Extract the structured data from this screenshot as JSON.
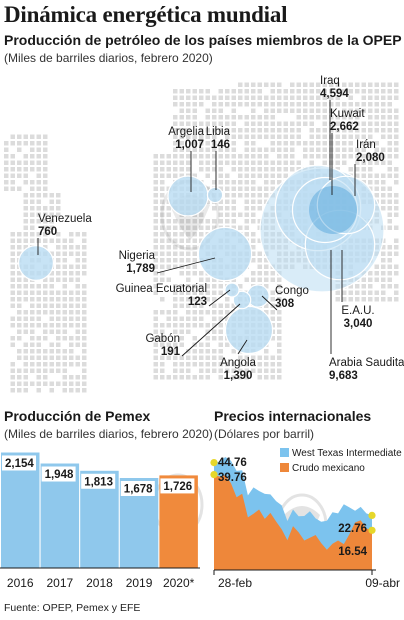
{
  "title": "Dinámica energética mundial",
  "colors": {
    "map_dots": "#dcdcdc",
    "bubble": "#7ab8e0",
    "bubble_fill": "#b9dcf2",
    "bubble_core": "#2a8fd0",
    "pemex_bar": "#8fc8ec",
    "pemex_highlight": "#f08a3c",
    "wti": "#7cc3ee",
    "mexican_crude": "#ee873a",
    "marker": "#e6d72a",
    "leader": "#1a1a1a"
  },
  "icons": {
    "watermark": "eagle-watermark-icon"
  },
  "opep": {
    "title": "Producción de petróleo de los países miembros de la OPEP",
    "subtitle": "(Miles de barriles diarios, febrero 2020)"
  },
  "pemex": {
    "title": "Producción de Pemex",
    "subtitle": "(Miles de barriles diarios, febrero 2020)"
  },
  "prices": {
    "title": "Precios internacionales",
    "subtitle": "(Dólares por barril)"
  },
  "source": "Fuente: OPEP, Pemex y EFE",
  "chart_data": [
    {
      "type": "bubble-map",
      "title": "Producción de petróleo de los países miembros de la OPEP",
      "subtitle": "(Miles de barriles diarios, febrero 2020)",
      "countries": [
        {
          "name": "Iraq",
          "value": 4594,
          "label": "4,594"
        },
        {
          "name": "Kuwait",
          "value": 2662,
          "label": "2,662"
        },
        {
          "name": "Irán",
          "value": 2080,
          "label": "2,080"
        },
        {
          "name": "Libia",
          "value": 146,
          "label": "146"
        },
        {
          "name": "Argelia",
          "value": 1007,
          "label": "1,007"
        },
        {
          "name": "Venezuela",
          "value": 760,
          "label": "760"
        },
        {
          "name": "Nigeria",
          "value": 1789,
          "label": "1,789"
        },
        {
          "name": "Guinea Ecuatorial",
          "value": 123,
          "label": "123"
        },
        {
          "name": "Congo",
          "value": 308,
          "label": "308"
        },
        {
          "name": "Gabón",
          "value": 191,
          "label": "191"
        },
        {
          "name": "Angola",
          "value": 1390,
          "label": "1,390"
        },
        {
          "name": "E.A.U.",
          "value": 3040,
          "label": "3,040"
        },
        {
          "name": "Arabia Saudita",
          "value": 9683,
          "label": "9,683"
        }
      ]
    },
    {
      "type": "bar",
      "title": "Producción de Pemex",
      "subtitle": "(Miles de barriles diarios, febrero 2020)",
      "categories": [
        "2016",
        "2017",
        "2018",
        "2019",
        "2020*"
      ],
      "values": [
        2154,
        1948,
        1813,
        1678,
        1726
      ],
      "value_labels": [
        "2,154",
        "1,948",
        "1,813",
        "1,678",
        "1,726"
      ],
      "highlight": "2020*",
      "ylim": [
        0,
        2200
      ]
    },
    {
      "type": "area",
      "title": "Precios internacionales",
      "subtitle": "(Dólares por barril)",
      "x_ticks": [
        "28-feb",
        "09-abr"
      ],
      "ylim": [
        0,
        50
      ],
      "series": [
        {
          "name": "West Texas Intermediate",
          "values": [
            44.76,
            45.2,
            47.1,
            45.6,
            41.3,
            41.6,
            31.1,
            34.4,
            32.9,
            31.7,
            31.5,
            28.7,
            26.9,
            20.4,
            25.2,
            22.4,
            22.5,
            24.5,
            21.5,
            20.1,
            20.5,
            24.1,
            23.6,
            27.4,
            26.1,
            24.7,
            26.3,
            23.6,
            22.76
          ],
          "start_label": "44.76",
          "end_label": "22.76"
        },
        {
          "name": "Crudo mexicano",
          "values": [
            39.76,
            38.9,
            39.5,
            36.2,
            30.3,
            31.8,
            21.9,
            23.4,
            25.2,
            21.3,
            23.8,
            20.2,
            16.9,
            12.4,
            18.3,
            15.7,
            12.3,
            13.4,
            14.6,
            11.2,
            8.4,
            10.9,
            12.3,
            10.8,
            14.9,
            19.8,
            20.7,
            17.3,
            16.54
          ],
          "start_label": "39.76",
          "end_label": "16.54"
        }
      ]
    }
  ]
}
